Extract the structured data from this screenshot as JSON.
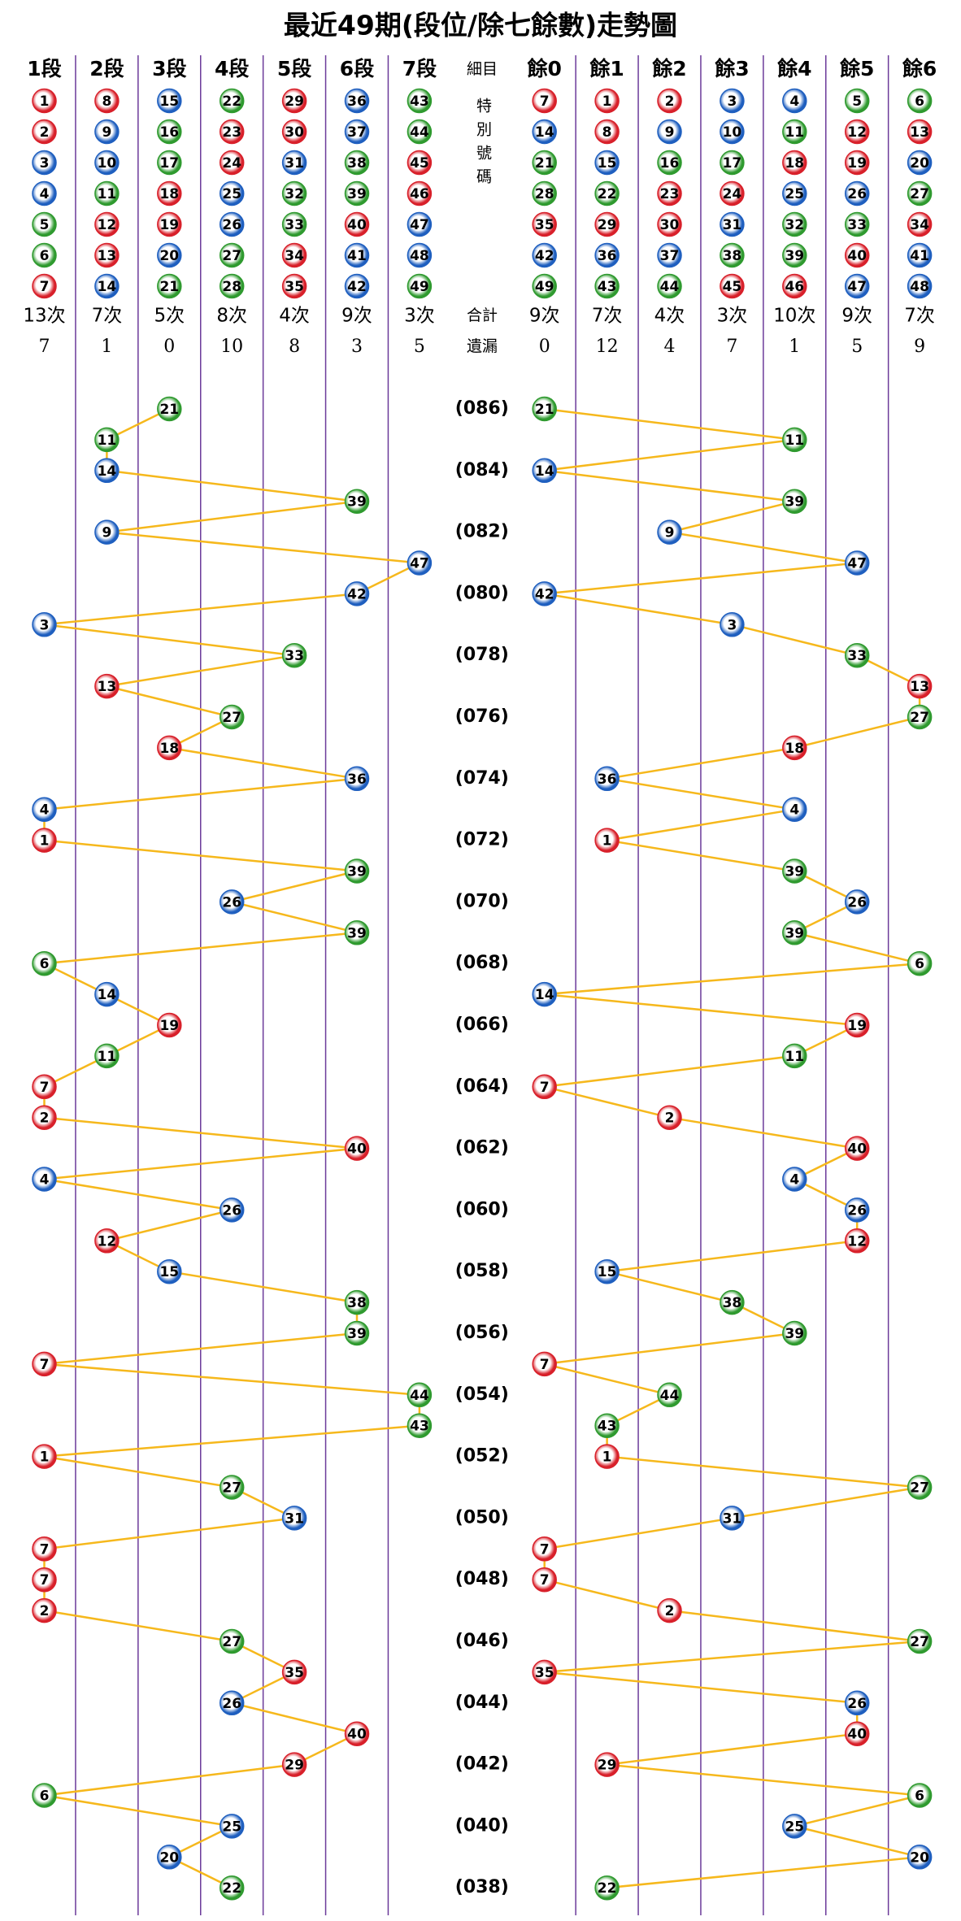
{
  "chart_data": {
    "type": "trend",
    "title": "最近49期(段位/除七餘數)走勢圖",
    "segment_columns": [
      {
        "label": "1段",
        "numbers": [
          1,
          2,
          3,
          4,
          5,
          6,
          7
        ],
        "count": "13次",
        "missing": 7
      },
      {
        "label": "2段",
        "numbers": [
          8,
          9,
          10,
          11,
          12,
          13,
          14
        ],
        "count": "7次",
        "missing": 1
      },
      {
        "label": "3段",
        "numbers": [
          15,
          16,
          17,
          18,
          19,
          20,
          21
        ],
        "count": "5次",
        "missing": 0
      },
      {
        "label": "4段",
        "numbers": [
          22,
          23,
          24,
          25,
          26,
          27,
          28
        ],
        "count": "8次",
        "missing": 10
      },
      {
        "label": "5段",
        "numbers": [
          29,
          30,
          31,
          32,
          33,
          34,
          35
        ],
        "count": "4次",
        "missing": 8
      },
      {
        "label": "6段",
        "numbers": [
          36,
          37,
          38,
          39,
          40,
          41,
          42
        ],
        "count": "9次",
        "missing": 3
      },
      {
        "label": "7段",
        "numbers": [
          43,
          44,
          45,
          46,
          47,
          48,
          49
        ],
        "count": "3次",
        "missing": 5
      }
    ],
    "detail_header": "細目",
    "special_label": "特別號碼",
    "count_header": "合計",
    "missing_header": "遺漏",
    "remainder_columns": [
      {
        "label": "餘0",
        "numbers": [
          7,
          14,
          21,
          28,
          35,
          42,
          49
        ],
        "count": "9次",
        "missing": 0
      },
      {
        "label": "餘1",
        "numbers": [
          1,
          8,
          15,
          22,
          29,
          36,
          43
        ],
        "count": "7次",
        "missing": 12
      },
      {
        "label": "餘2",
        "numbers": [
          2,
          9,
          16,
          23,
          30,
          37,
          44
        ],
        "count": "4次",
        "missing": 4
      },
      {
        "label": "餘3",
        "numbers": [
          3,
          10,
          17,
          24,
          31,
          38,
          45
        ],
        "count": "3次",
        "missing": 7
      },
      {
        "label": "餘4",
        "numbers": [
          4,
          11,
          18,
          25,
          32,
          39,
          46
        ],
        "count": "10次",
        "missing": 1
      },
      {
        "label": "餘5",
        "numbers": [
          5,
          12,
          19,
          26,
          33,
          40,
          47
        ],
        "count": "9次",
        "missing": 5
      },
      {
        "label": "餘6",
        "numbers": [
          6,
          13,
          20,
          27,
          34,
          41,
          48
        ],
        "count": "7次",
        "missing": 9
      }
    ],
    "categories": [
      "(086)",
      null,
      "(084)",
      null,
      "(082)",
      null,
      "(080)",
      null,
      "(078)",
      null,
      "(076)",
      null,
      "(074)",
      null,
      "(072)",
      null,
      "(070)",
      null,
      "(068)",
      null,
      "(066)",
      null,
      "(064)",
      null,
      "(062)",
      null,
      "(060)",
      null,
      "(058)",
      null,
      "(056)",
      null,
      "(054)",
      null,
      "(052)",
      null,
      "(050)",
      null,
      "(048)",
      null,
      "(046)",
      null,
      "(044)",
      null,
      "(042)",
      null,
      "(040)",
      null,
      "(038)"
    ],
    "values": [
      21,
      11,
      14,
      39,
      9,
      47,
      42,
      3,
      33,
      13,
      27,
      18,
      36,
      4,
      1,
      39,
      26,
      39,
      6,
      14,
      19,
      11,
      7,
      2,
      40,
      4,
      26,
      12,
      15,
      38,
      39,
      7,
      44,
      43,
      1,
      27,
      31,
      7,
      7,
      2,
      27,
      35,
      26,
      40,
      29,
      6,
      25,
      20,
      22
    ],
    "line_color": "#f6b81c",
    "grid_color": "#6b3a9a",
    "ball_colors": {
      "red": "#d8202a",
      "blue": "#1f5fbf",
      "green": "#2f9a2f"
    },
    "number_colors": [
      "red",
      "red",
      "blue",
      "blue",
      "green",
      "green",
      "red",
      "red",
      "blue",
      "blue",
      "green",
      "red",
      "red",
      "blue",
      "blue",
      "green",
      "green",
      "red",
      "red",
      "blue",
      "green",
      "green",
      "red",
      "red",
      "blue",
      "blue",
      "green",
      "green",
      "red",
      "red",
      "blue",
      "green",
      "green",
      "red",
      "red",
      "blue",
      "blue",
      "green",
      "green",
      "red",
      "blue",
      "blue",
      "green",
      "green",
      "red",
      "red",
      "blue",
      "blue",
      "green"
    ]
  }
}
